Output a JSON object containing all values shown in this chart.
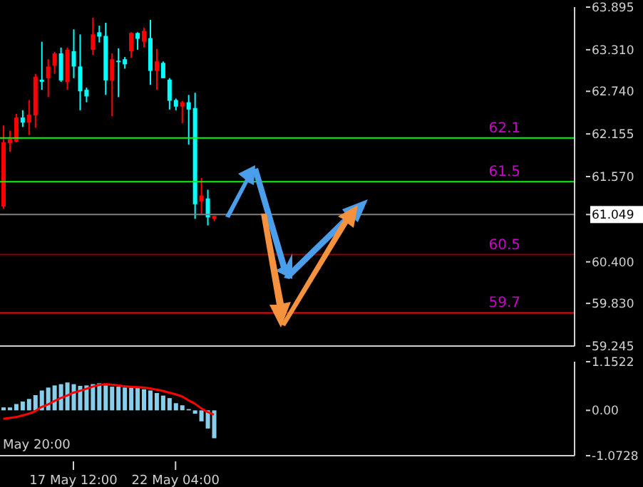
{
  "chart_data": [
    {
      "type": "candlestick",
      "tick_labels": "y",
      "categories": [
        null,
        null,
        null,
        null,
        null,
        null,
        null,
        null,
        null,
        null,
        null,
        null,
        null,
        null,
        null,
        null,
        null,
        null,
        null,
        null,
        null,
        null,
        null,
        null,
        null,
        null,
        null,
        null,
        null,
        null,
        null,
        null,
        null,
        null,
        null,
        null,
        null,
        null,
        null,
        null,
        null,
        null,
        null,
        null,
        null,
        null,
        null,
        null,
        null,
        null,
        null,
        null,
        null,
        null,
        null,
        null,
        null,
        null,
        null,
        null,
        null,
        null,
        null,
        null,
        null,
        null,
        null,
        null,
        null,
        null,
        null,
        null,
        null,
        null,
        null,
        null,
        null,
        null,
        null,
        null,
        null,
        null,
        null,
        null,
        null,
        null,
        null,
        null,
        null,
        null
      ],
      "ohlc": [
        [
          61.16,
          62.27,
          61.13,
          62.04
        ],
        [
          62.03,
          62.2,
          61.91,
          62.09
        ],
        [
          62.05,
          62.43,
          62.04,
          62.38
        ],
        [
          62.38,
          62.48,
          62.25,
          62.31
        ],
        [
          62.31,
          62.62,
          62.14,
          62.42
        ],
        [
          62.41,
          62.98,
          62.24,
          62.94
        ],
        [
          62.9,
          63.42,
          62.76,
          62.87
        ],
        [
          62.92,
          63.18,
          62.66,
          63.08
        ],
        [
          63.09,
          63.28,
          62.98,
          63.26
        ],
        [
          63.26,
          63.34,
          62.87,
          62.89
        ],
        [
          62.87,
          63.34,
          62.76,
          63.31
        ],
        [
          63.29,
          63.59,
          62.92,
          63.08
        ],
        [
          63.08,
          63.52,
          62.48,
          62.74
        ],
        [
          62.76,
          62.79,
          62.59,
          62.67
        ],
        [
          63.31,
          63.75,
          63.24,
          63.52
        ],
        [
          63.55,
          63.64,
          63.41,
          63.49
        ],
        [
          63.5,
          63.68,
          62.69,
          62.89
        ],
        [
          62.89,
          63.26,
          62.4,
          63.18
        ],
        [
          63.16,
          63.33,
          62.66,
          63.15
        ],
        [
          63.18,
          63.21,
          63.05,
          63.11
        ],
        [
          63.29,
          63.55,
          63.2,
          63.54
        ],
        [
          63.54,
          63.55,
          63.31,
          63.46
        ],
        [
          63.42,
          63.61,
          63.34,
          63.57
        ],
        [
          63.47,
          63.72,
          62.83,
          63.02
        ],
        [
          63.02,
          63.32,
          62.76,
          63.15
        ],
        [
          63.13,
          63.15,
          62.92,
          62.92
        ],
        [
          62.9,
          62.92,
          62.49,
          62.61
        ],
        [
          62.62,
          62.64,
          62.48,
          62.53
        ],
        [
          62.53,
          62.61,
          62.3,
          62.59
        ],
        [
          62.59,
          62.69,
          62.01,
          62.49
        ],
        [
          62.51,
          62.72,
          60.99,
          61.19
        ],
        [
          61.23,
          61.55,
          61.06,
          61.31
        ],
        [
          61.27,
          61.39,
          60.9,
          61.01
        ],
        [
          60.99,
          61.03,
          60.96,
          61.03
        ],
        null,
        null,
        null,
        null,
        null,
        null,
        null,
        null,
        null,
        null,
        null,
        null,
        null,
        null,
        null,
        null,
        null,
        null,
        null,
        null,
        null,
        null,
        null,
        null,
        null,
        null,
        null,
        null,
        null,
        null,
        null,
        null,
        null,
        null,
        null,
        null,
        null,
        null,
        null,
        null,
        null,
        null,
        null,
        null,
        null,
        null,
        null,
        null,
        null,
        null,
        null,
        null,
        null,
        null,
        null,
        null
      ],
      "colors": [
        "#ff0000",
        "#ff0000",
        "#ff0000",
        "#00ffff",
        "#ff0000",
        "#ff0000",
        "#00ffff",
        "#ff0000",
        "#ff0000",
        "#00ffff",
        "#ff0000",
        "#00ffff",
        "#00ffff",
        "#00ffff",
        "#ff0000",
        "#00ffff",
        "#00ffff",
        "#ff0000",
        "#00ffff",
        "#00ffff",
        "#ff0000",
        "#00ffff",
        "#ff0000",
        "#00ffff",
        "#ff0000",
        "#00ffff",
        "#00ffff",
        "#00ffff",
        "#ff0000",
        "#00ffff",
        "#00ffff",
        "#ff0000",
        "#00ffff",
        "#ff0000",
        null,
        null,
        null,
        null,
        null,
        null,
        null,
        null,
        null,
        null,
        null,
        null,
        null,
        null,
        null,
        null,
        null,
        null,
        null,
        null,
        null,
        null,
        null,
        null,
        null,
        null,
        null,
        null,
        null,
        null,
        null,
        null,
        null,
        null,
        null,
        null,
        null,
        null,
        null,
        null,
        null,
        null,
        null,
        null,
        null,
        null,
        null,
        null,
        null,
        null,
        null,
        null,
        null,
        null,
        null,
        null
      ],
      "ylim": [
        59.245,
        63.895
      ],
      "yticks": [
        63.895,
        {
          "value": 63.31,
          "label": "63.310"
        },
        {
          "value": 62.74,
          "label": "62.740"
        },
        62.155,
        {
          "value": 61.57,
          "label": "61.570"
        },
        61.049,
        {
          "value": 60.4,
          "label": "60.400"
        },
        {
          "value": 59.83,
          "label": "59.830"
        },
        59.245
      ],
      "ref_lines": [
        {
          "axis": "y",
          "value": 62.1,
          "label": "62.1",
          "color": "#00ff00"
        },
        {
          "axis": "y",
          "value": 61.5,
          "label": "61.5",
          "color": "#00ff00"
        },
        {
          "axis": "y",
          "value": 61.049,
          "color": "#808080"
        },
        {
          "axis": "y",
          "value": 60.5,
          "label": "60.5",
          "color": "#8b0000"
        },
        {
          "axis": "y",
          "value": 59.7,
          "label": "59.7",
          "color": "#ff0000"
        }
      ]
    },
    {
      "type": "bar",
      "categories": [
        null,
        null,
        null,
        null,
        null,
        null,
        null,
        null,
        null,
        null,
        null,
        "17 May 12:00",
        null,
        null,
        null,
        null,
        null,
        null,
        null,
        null,
        null,
        null,
        null,
        null,
        null,
        null,
        null,
        "22 May 04:00",
        null,
        null,
        null,
        null,
        null,
        null,
        null,
        null,
        null,
        null,
        null,
        null,
        null,
        null,
        null,
        null,
        null,
        null,
        null,
        null,
        null,
        null,
        null,
        null,
        null,
        null,
        null,
        null,
        null,
        null,
        null,
        null,
        null,
        null,
        null,
        null,
        null,
        null,
        null,
        null,
        null,
        null,
        null,
        null,
        null,
        null,
        null,
        null,
        null,
        null,
        null,
        null,
        null,
        null,
        null,
        null,
        null,
        null,
        null,
        null,
        null,
        null
      ],
      "series": [
        {
          "type": "bar",
          "color": "#87ceeb",
          "values": [
            0.07,
            0.07,
            0.15,
            0.21,
            0.27,
            0.36,
            0.47,
            0.54,
            0.59,
            0.62,
            0.66,
            0.62,
            0.58,
            0.59,
            0.62,
            0.64,
            0.59,
            0.56,
            0.56,
            0.54,
            0.54,
            0.54,
            0.5,
            0.47,
            0.41,
            0.35,
            0.29,
            0.17,
            0.12,
            0.03,
            -0.08,
            -0.26,
            -0.43,
            -0.66,
            null,
            null,
            null,
            null,
            null,
            null,
            null,
            null,
            null,
            null,
            null,
            null,
            null,
            null,
            null,
            null,
            null,
            null,
            null,
            null,
            null,
            null,
            null,
            null,
            null,
            null,
            null,
            null,
            null,
            null,
            null,
            null,
            null,
            null,
            null,
            null,
            null,
            null,
            null,
            null,
            null,
            null,
            null,
            null,
            null,
            null,
            null,
            null,
            null,
            null,
            null,
            null,
            null,
            null,
            null,
            null
          ]
        },
        {
          "type": "line",
          "color": "#ff0000",
          "values": [
            -0.2,
            -0.18,
            -0.16,
            -0.12,
            -0.08,
            -0.02,
            0.08,
            0.14,
            0.22,
            0.29,
            0.35,
            0.42,
            0.46,
            0.51,
            0.56,
            0.6,
            0.62,
            0.61,
            0.59,
            0.57,
            0.56,
            0.55,
            0.54,
            0.52,
            0.49,
            0.46,
            0.42,
            0.38,
            0.33,
            0.24,
            0.16,
            0.05,
            -0.04,
            -0.1,
            null,
            null,
            null,
            null,
            null,
            null,
            null,
            null,
            null,
            null,
            null,
            null,
            null,
            null,
            null,
            null,
            null,
            null,
            null,
            null,
            null,
            null,
            null,
            null,
            null,
            null,
            null,
            null,
            null,
            null,
            null,
            null,
            null,
            null,
            null,
            null,
            null,
            null,
            null,
            null,
            null,
            null,
            null,
            null,
            null,
            null,
            null,
            null,
            null,
            null,
            null,
            null,
            null,
            null,
            null,
            null
          ]
        }
      ],
      "ylim": [
        -1.0728,
        1.1522
      ],
      "yticks": [
        1.1522,
        {
          "value": 0,
          "label": "0.00"
        },
        -1.0728
      ],
      "annotations": [
        "May 20:00"
      ]
    }
  ]
}
